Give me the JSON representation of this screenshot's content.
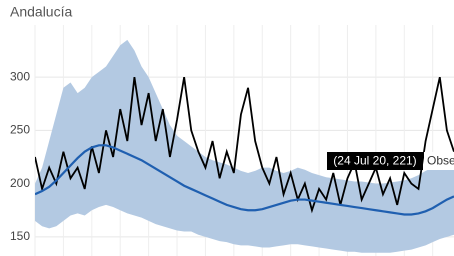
{
  "chart_data": {
    "type": "line",
    "title": "Andalucía",
    "categories": [
      null,
      null,
      null,
      null,
      null,
      null,
      null,
      null,
      null,
      null,
      null,
      null,
      null,
      null,
      null,
      null,
      null,
      null,
      null,
      null,
      null,
      null,
      null,
      null,
      null,
      null,
      null,
      null,
      null,
      null,
      null,
      null,
      null,
      null,
      null,
      null,
      null,
      null,
      null,
      null,
      null,
      null,
      null,
      null,
      null,
      null,
      null,
      null,
      null,
      null,
      null,
      null,
      null,
      null,
      null,
      null,
      null,
      null,
      null,
      null
    ],
    "series": [
      {
        "color": "#000000",
        "values": [
          225,
          195,
          215,
          200,
          230,
          205,
          215,
          195,
          235,
          210,
          250,
          225,
          270,
          240,
          300,
          255,
          285,
          240,
          270,
          225,
          260,
          300,
          250,
          230,
          215,
          240,
          205,
          230,
          210,
          265,
          290,
          240,
          215,
          200,
          225,
          190,
          210,
          185,
          200,
          175,
          195,
          185,
          210,
          180,
          205,
          220,
          185,
          200,
          215,
          190,
          205,
          180,
          210,
          200,
          195,
          240,
          270,
          300,
          250,
          230
        ]
      },
      {
        "color": "#1f5fb0",
        "values": [
          190,
          193,
          197,
          203,
          210,
          217,
          224,
          230,
          234,
          236,
          236,
          234,
          231,
          228,
          225,
          222,
          218,
          214,
          210,
          206,
          202,
          198,
          195,
          192,
          189,
          186,
          183,
          180,
          178,
          176,
          175,
          175,
          176,
          178,
          180,
          182,
          184,
          185,
          185,
          184,
          183,
          182,
          181,
          180,
          179,
          178,
          177,
          176,
          175,
          174,
          173,
          172,
          171,
          171,
          172,
          174,
          177,
          181,
          185,
          188
        ]
      }
    ],
    "band": {
      "color": "#b3c9e2",
      "upper": [
        200,
        215,
        240,
        265,
        290,
        295,
        285,
        290,
        300,
        305,
        310,
        320,
        330,
        335,
        325,
        310,
        300,
        285,
        270,
        255,
        245,
        240,
        235,
        230,
        225,
        222,
        220,
        218,
        215,
        212,
        210,
        212,
        215,
        215,
        212,
        210,
        212,
        215,
        213,
        210,
        208,
        206,
        205,
        204,
        203,
        202,
        202,
        201,
        200,
        200,
        201,
        202,
        203,
        205,
        208,
        212,
        215,
        218,
        220,
        220
      ],
      "lower": [
        165,
        160,
        158,
        160,
        165,
        170,
        172,
        170,
        175,
        178,
        180,
        178,
        175,
        172,
        170,
        168,
        165,
        162,
        160,
        158,
        156,
        155,
        155,
        152,
        150,
        148,
        146,
        145,
        143,
        142,
        142,
        141,
        140,
        140,
        141,
        142,
        143,
        143,
        142,
        141,
        140,
        139,
        138,
        137,
        136,
        136,
        135,
        135,
        135,
        135,
        135,
        136,
        137,
        138,
        140,
        142,
        145,
        148,
        150,
        152
      ]
    },
    "ylim": [
      132,
      349
    ],
    "yticks": [
      150,
      200,
      250,
      300
    ],
    "grid": true,
    "tooltip": {
      "text": "(24 Jul 20, 221)",
      "extra": "Obse"
    }
  }
}
